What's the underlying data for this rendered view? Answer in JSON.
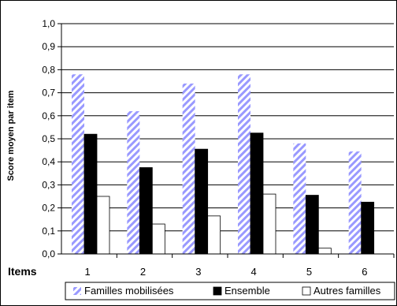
{
  "chart_data": {
    "type": "bar",
    "title": "",
    "xlabel": "Items",
    "ylabel": "Score moyen par item",
    "categories": [
      "1",
      "2",
      "3",
      "4",
      "5",
      "6"
    ],
    "ylim": [
      0,
      1.0
    ],
    "yticks": [
      "0,0",
      "0,1",
      "0,2",
      "0,3",
      "0,4",
      "0,5",
      "0,6",
      "0,7",
      "0,8",
      "0,9",
      "1,0"
    ],
    "grid": true,
    "legend_position": "bottom",
    "series": [
      {
        "name": "Familles mobilisées",
        "values": [
          0.78,
          0.62,
          0.74,
          0.78,
          0.48,
          0.445
        ],
        "fill": "hatched",
        "color": "#9999ff"
      },
      {
        "name": "Ensemble",
        "values": [
          0.52,
          0.375,
          0.455,
          0.525,
          0.255,
          0.225
        ],
        "fill": "solid",
        "color": "#000000"
      },
      {
        "name": "Autres familles",
        "values": [
          0.25,
          0.13,
          0.165,
          0.26,
          0.025,
          0.0
        ],
        "fill": "solid",
        "color": "#ffffff"
      }
    ]
  }
}
